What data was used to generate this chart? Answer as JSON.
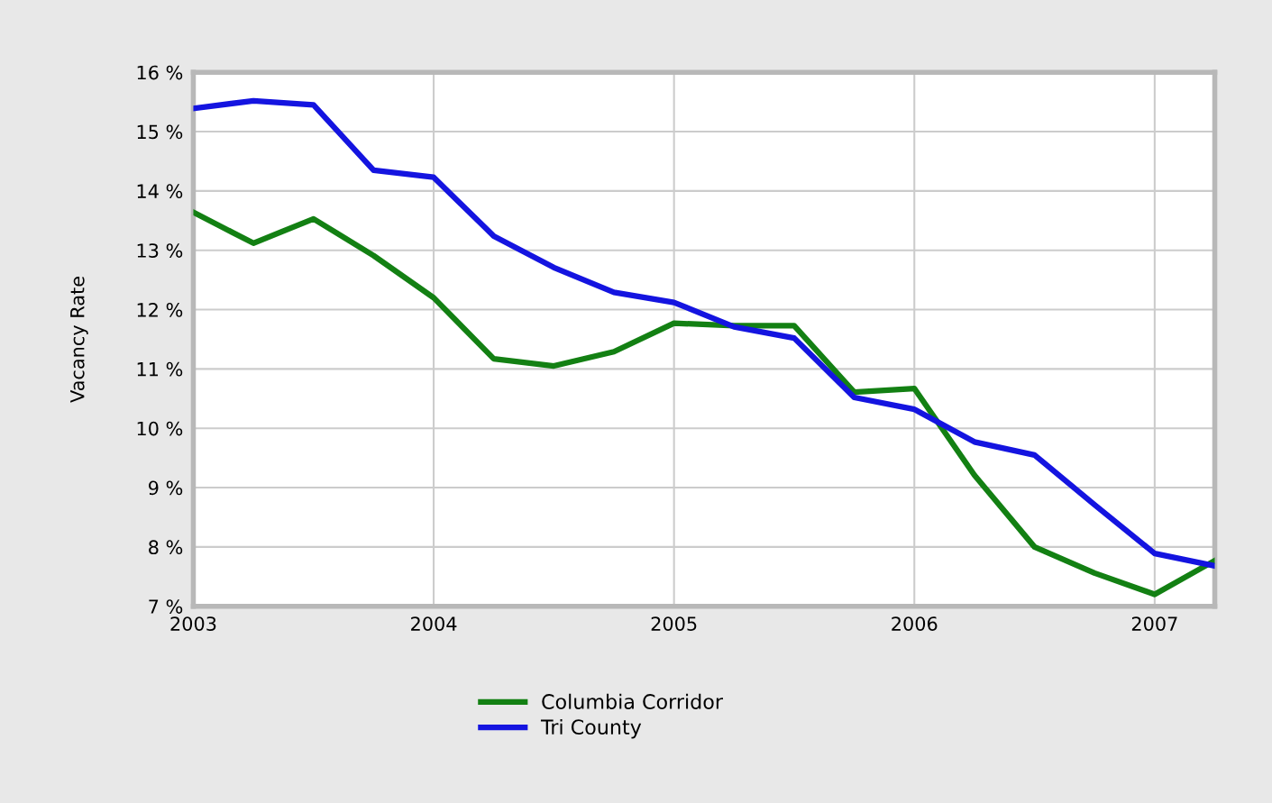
{
  "chart_data": {
    "type": "line",
    "ylabel": "Vacancy Rate",
    "x": [
      "2003-01",
      "2003-04",
      "2003-07",
      "2003-10",
      "2004-01",
      "2004-04",
      "2004-07",
      "2004-10",
      "2005-01",
      "2005-04",
      "2005-07",
      "2005-10",
      "2006-01",
      "2006-04",
      "2006-07",
      "2006-10",
      "2007-01",
      "2007-04"
    ],
    "series": [
      {
        "name": "Columbia Corridor",
        "color": "#138013",
        "values": [
          13.64,
          13.12,
          13.53,
          12.91,
          12.2,
          11.17,
          11.05,
          11.29,
          11.77,
          11.73,
          11.73,
          10.61,
          10.67,
          9.21,
          8.0,
          7.56,
          7.2,
          7.77
        ]
      },
      {
        "name": "Tri County",
        "color": "#1414e0",
        "values": [
          15.39,
          15.52,
          15.45,
          14.35,
          14.23,
          13.24,
          12.71,
          12.29,
          12.12,
          11.71,
          11.52,
          10.52,
          10.32,
          9.77,
          9.55,
          8.71,
          7.89,
          7.68
        ]
      }
    ],
    "xlim": [
      "2003-01",
      "2007-04"
    ],
    "xticks": [
      {
        "value": "2003",
        "label": "2003"
      },
      {
        "value": "2004",
        "label": "2004"
      },
      {
        "value": "2005",
        "label": "2005"
      },
      {
        "value": "2006",
        "label": "2006"
      },
      {
        "value": "2007",
        "label": "2007"
      }
    ],
    "ylim": [
      7,
      16
    ],
    "yticks": [
      {
        "value": 7,
        "label": "7 %"
      },
      {
        "value": 8,
        "label": "8 %"
      },
      {
        "value": 9,
        "label": "9 %"
      },
      {
        "value": 10,
        "label": "10 %"
      },
      {
        "value": 11,
        "label": "11 %"
      },
      {
        "value": 12,
        "label": "12 %"
      },
      {
        "value": 13,
        "label": "13 %"
      },
      {
        "value": 14,
        "label": "14 %"
      },
      {
        "value": 15,
        "label": "15 %"
      },
      {
        "value": 16,
        "label": "16 %"
      }
    ],
    "grid": true,
    "legend": "bottom",
    "marker": "none",
    "line_style": "solid"
  }
}
